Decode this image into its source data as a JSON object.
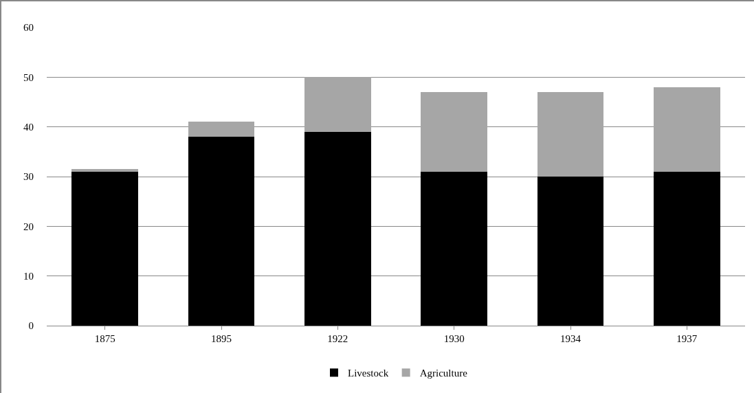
{
  "chart_data": {
    "type": "bar",
    "stacked": true,
    "categories": [
      "1875",
      "1895",
      "1922",
      "1930",
      "1934",
      "1937"
    ],
    "series": [
      {
        "name": "Livestock",
        "color": "#000000",
        "values": [
          31,
          38,
          39,
          31,
          30,
          31
        ]
      },
      {
        "name": "Agriculture",
        "color": "#a6a6a6",
        "values": [
          0.5,
          3,
          11,
          16,
          17,
          17
        ]
      }
    ],
    "ylim": [
      0,
      60
    ],
    "yticks": [
      0,
      10,
      20,
      30,
      40,
      50,
      60
    ],
    "grid": "y",
    "legend": "bottom"
  }
}
